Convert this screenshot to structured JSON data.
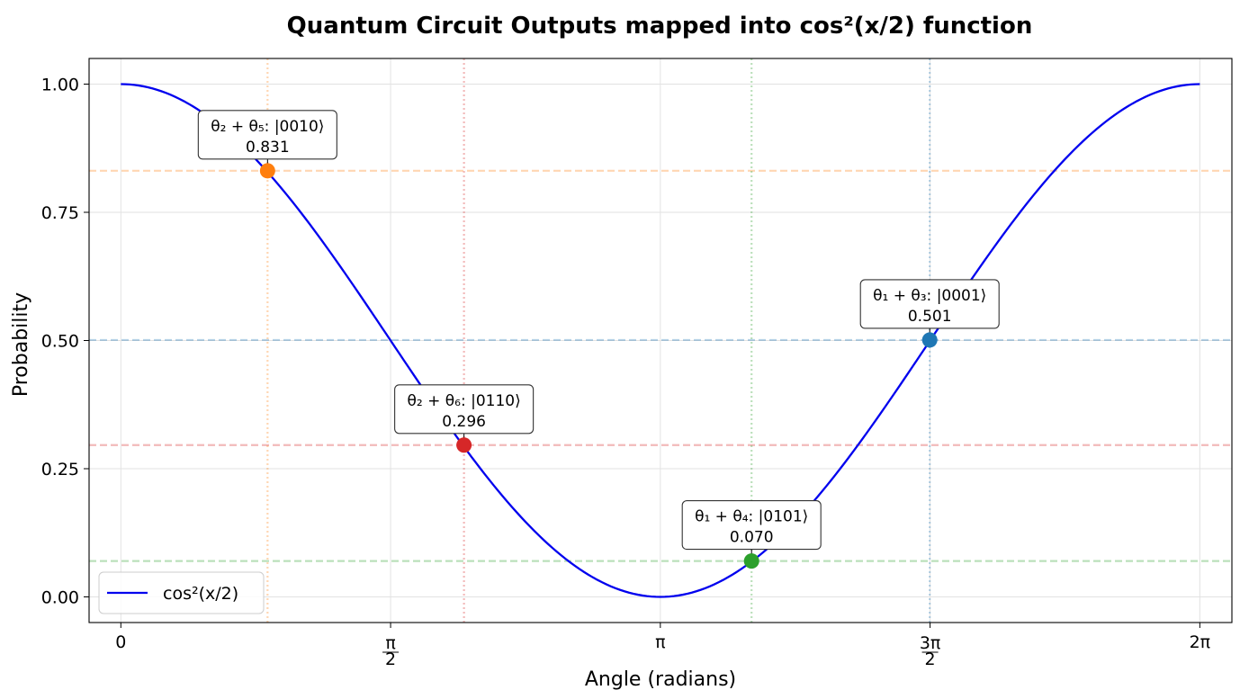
{
  "chart_data": {
    "type": "line",
    "title": "Quantum Circuit Outputs mapped into cos²(x/2) function",
    "xlabel": "Angle (radians)",
    "ylabel": "Probability",
    "xlim": [
      -0.185,
      6.47
    ],
    "ylim": [
      -0.05,
      1.05
    ],
    "grid": true,
    "legend_position": "lower-left",
    "x_ticks": [
      {
        "value": 0,
        "label": "0"
      },
      {
        "value": 1.5708,
        "label": "π/2"
      },
      {
        "value": 3.1416,
        "label": "π"
      },
      {
        "value": 4.7124,
        "label": "3π/2"
      },
      {
        "value": 6.2832,
        "label": "2π"
      }
    ],
    "y_ticks": [
      {
        "value": 0.0,
        "label": "0.00"
      },
      {
        "value": 0.25,
        "label": "0.25"
      },
      {
        "value": 0.5,
        "label": "0.50"
      },
      {
        "value": 0.75,
        "label": "0.75"
      },
      {
        "value": 1.0,
        "label": "1.00"
      }
    ],
    "series": [
      {
        "name": "cos²(x/2)",
        "function": "cos^2(x/2)",
        "x_range": [
          0,
          6.2832
        ],
        "color": "#0000ee"
      }
    ],
    "points": [
      {
        "label": "θ₂ + θ₅: |0010⟩",
        "value_label": "0.831",
        "x": 0.8543,
        "y": 0.831,
        "color": "#ff7f0e"
      },
      {
        "label": "θ₂ + θ₆: |0110⟩",
        "value_label": "0.296",
        "x": 1.9982,
        "y": 0.296,
        "color": "#d62728"
      },
      {
        "label": "θ₁ + θ₄: |0101⟩",
        "value_label": "0.070",
        "x": 3.6728,
        "y": 0.07,
        "color": "#2ca02c"
      },
      {
        "label": "θ₁ + θ₃: |0001⟩",
        "value_label": "0.501",
        "x": 4.7104,
        "y": 0.501,
        "color": "#1f77b4"
      }
    ]
  }
}
